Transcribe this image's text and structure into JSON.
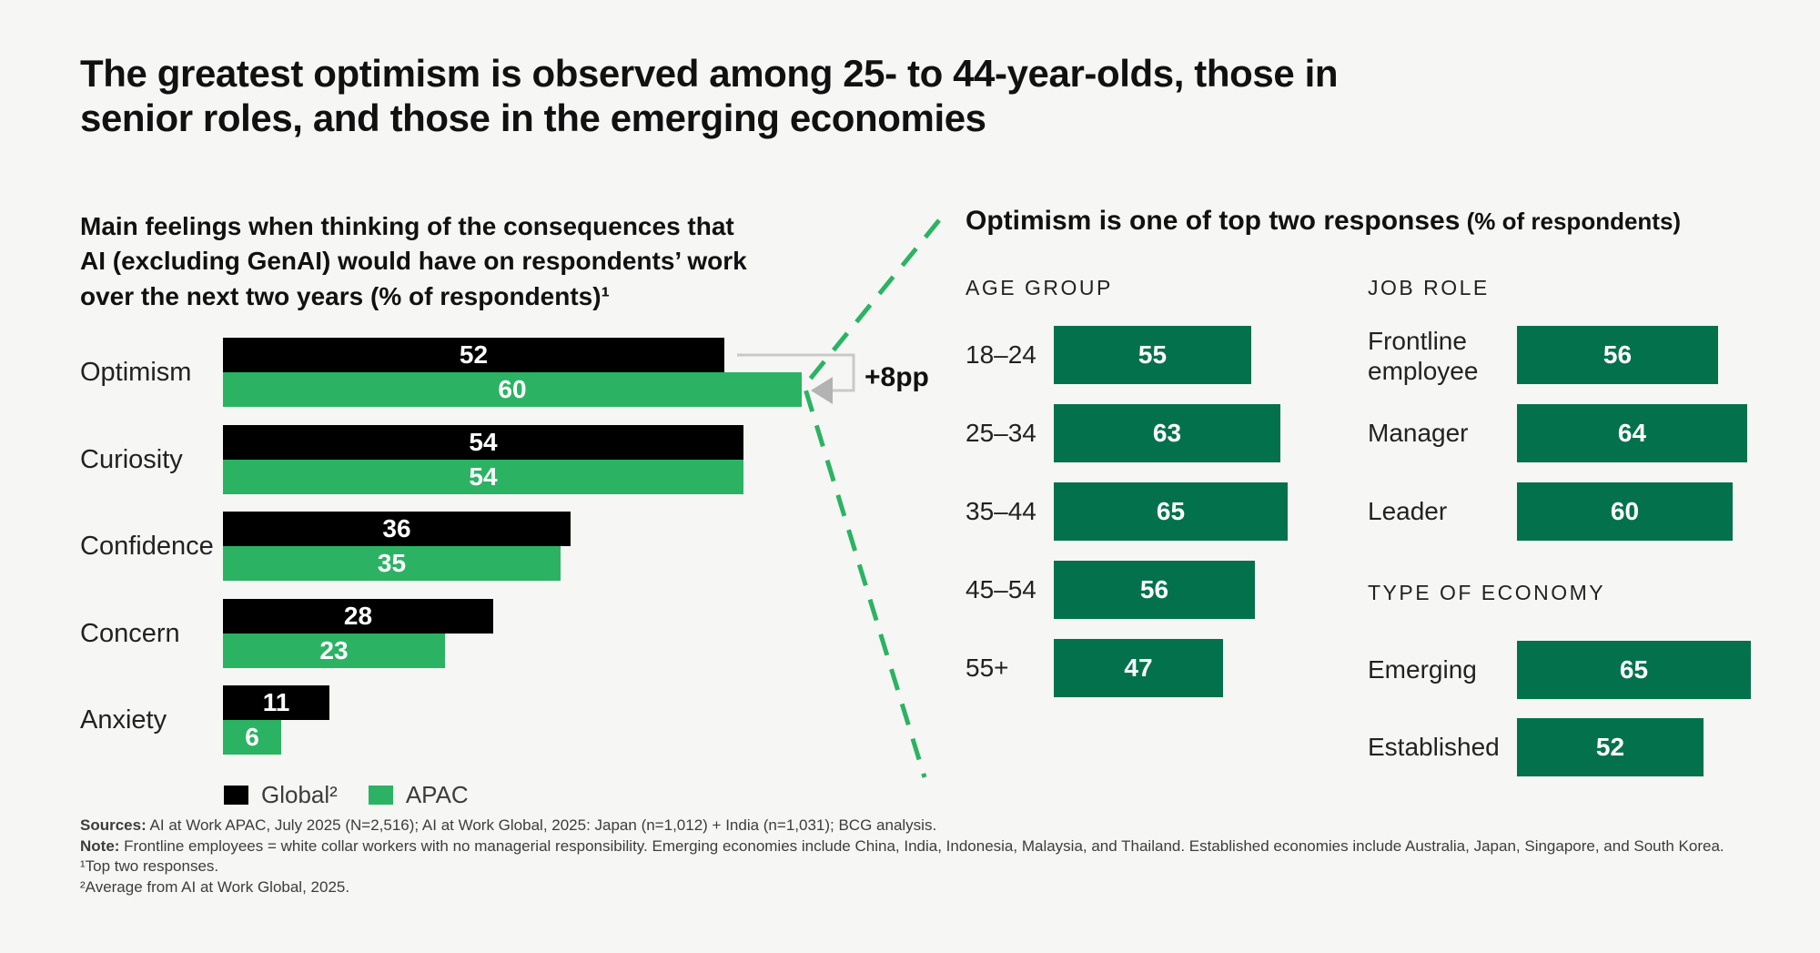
{
  "page": {
    "title": "The greatest optimism is observed among 25- to 44-year-olds, those in\nsenior roles, and those in the emerging economies"
  },
  "chart_data": [
    {
      "type": "bar",
      "orientation": "horizontal",
      "title": "Main feelings when thinking of the consequences that\nAI (excluding GenAI) would have on respondents’ work\nover the next two years (% of respondents)¹",
      "categories": [
        "Optimism",
        "Curiosity",
        "Confidence",
        "Concern",
        "Anxiety"
      ],
      "series": [
        {
          "name": "Global²",
          "color": "#000000",
          "values": [
            52,
            54,
            36,
            28,
            11
          ]
        },
        {
          "name": "APAC",
          "color": "#2bb363",
          "values": [
            60,
            54,
            35,
            23,
            6
          ]
        }
      ],
      "annotation": {
        "label": "+8pp",
        "refers_to": "APAC vs Global gap on Optimism"
      },
      "xlim": [
        0,
        100
      ],
      "grid": false,
      "legend_position": "bottom"
    },
    {
      "type": "bar",
      "orientation": "horizontal",
      "title_main": "Optimism is one of top two responses",
      "title_paren": " (% of respondents)",
      "color": "#03724c",
      "groups": [
        {
          "label": "AGE GROUP",
          "categories": [
            "18–24",
            "25–34",
            "35–44",
            "45–54",
            "55+"
          ],
          "values": [
            55,
            63,
            65,
            56,
            47
          ]
        },
        {
          "label": "JOB ROLE",
          "categories": [
            "Frontline employee",
            "Manager",
            "Leader"
          ],
          "values": [
            56,
            64,
            60
          ]
        },
        {
          "label": "TYPE OF ECONOMY",
          "categories": [
            "Emerging",
            "Established"
          ],
          "values": [
            65,
            52
          ]
        }
      ],
      "xlim": [
        0,
        100
      ],
      "grid": false
    }
  ],
  "footer": {
    "sources_label": "Sources:",
    "sources_text": " AI at Work APAC, July 2025 (N=2,516); AI at Work Global, 2025: Japan (n=1,012) + India (n=1,031); BCG analysis.",
    "note_label": "Note:",
    "note_text": " Frontline employees = white collar workers with no managerial responsibility. Emerging economies include China, India, Indonesia, Malaysia, and Thailand. Established economies include Australia, Japan, Singapore, and South Korea.",
    "footnote1": "¹Top two responses.",
    "footnote2": "²Average from AI at Work Global, 2025."
  },
  "colors": {
    "background": "#f6f6f4",
    "title_text": "#111111",
    "body_text": "#222222",
    "muted_text": "#3c3c3c",
    "footer_text": "#3d3d3d",
    "apac_green": "#2bb363",
    "dark_green": "#03724c",
    "bracket_gray": "#c9c9c9",
    "arrow_gray": "#b3b3b3",
    "white": "#ffffff"
  }
}
